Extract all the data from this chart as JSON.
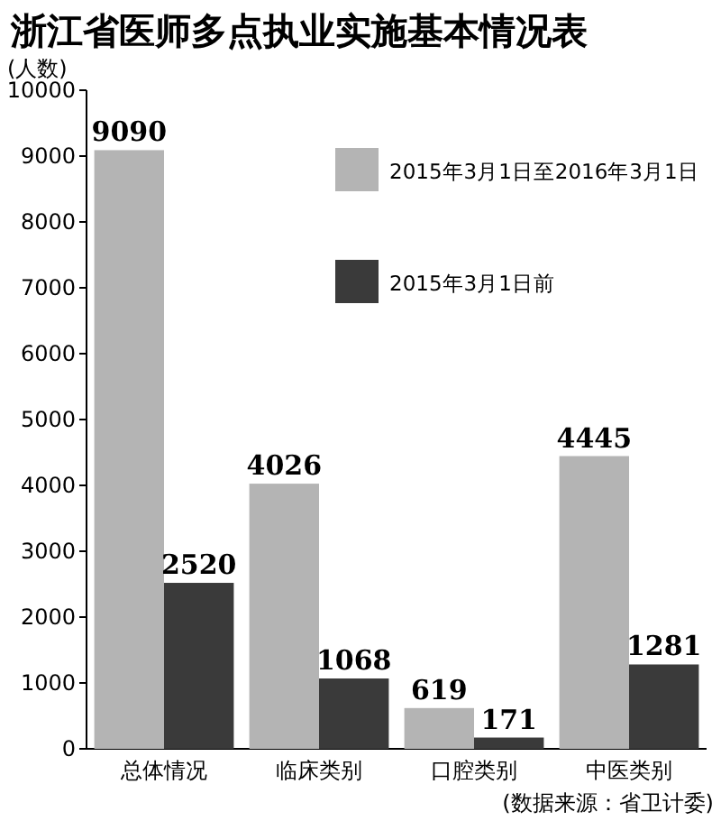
{
  "chart_data": {
    "type": "bar",
    "title": "浙江省医师多点执业实施基本情况表",
    "ylabel": "(人数)",
    "categories": [
      "总体情况",
      "临床类别",
      "口腔类别",
      "中医类别"
    ],
    "series": [
      {
        "name": "2015年3月1日至2016年3月1日",
        "color": "#b4b4b4",
        "values": [
          9090,
          4026,
          619,
          4445
        ]
      },
      {
        "name": "2015年3月1日前",
        "color": "#3a3a3a",
        "values": [
          2520,
          1068,
          171,
          1281
        ]
      }
    ],
    "ylim": [
      0,
      10000
    ],
    "yticks": [
      0,
      1000,
      2000,
      3000,
      4000,
      5000,
      6000,
      7000,
      8000,
      9000,
      10000
    ],
    "data_labels": true,
    "legend": "top right",
    "grid": false,
    "annotations": [
      "(数据来源：省卫计委)"
    ]
  }
}
